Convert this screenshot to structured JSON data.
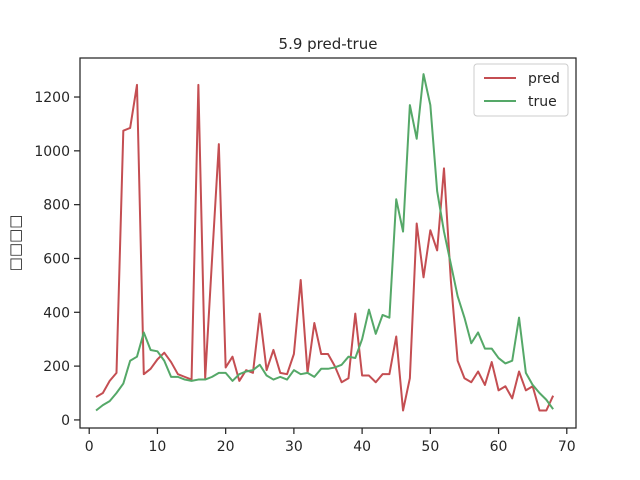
{
  "chart_data": {
    "type": "line",
    "title": "5.9 pred-true",
    "xlabel": "",
    "ylabel": "□□□□",
    "xlim": [
      -1.35,
      71.35
    ],
    "ylim": [
      -30,
      1345
    ],
    "xticks": [
      0,
      10,
      20,
      30,
      40,
      50,
      60,
      70
    ],
    "yticks": [
      0,
      200,
      400,
      600,
      800,
      1000,
      1200
    ],
    "grid": false,
    "legend_position": "top-right",
    "x": [
      1,
      2,
      3,
      4,
      5,
      6,
      7,
      8,
      9,
      10,
      11,
      12,
      13,
      14,
      15,
      16,
      17,
      18,
      19,
      20,
      21,
      22,
      23,
      24,
      25,
      26,
      27,
      28,
      29,
      30,
      31,
      32,
      33,
      34,
      35,
      36,
      37,
      38,
      39,
      40,
      41,
      42,
      43,
      44,
      45,
      46,
      47,
      48,
      49,
      50,
      51,
      52,
      53,
      54,
      55,
      56,
      57,
      58,
      59,
      60,
      61,
      62,
      63,
      64,
      65,
      66,
      67,
      68
    ],
    "series": [
      {
        "name": "pred",
        "color": "#c44e52",
        "values": [
          85,
          100,
          145,
          175,
          1075,
          1085,
          1245,
          170,
          190,
          225,
          250,
          215,
          170,
          160,
          150,
          1245,
          155,
          595,
          1025,
          195,
          235,
          145,
          185,
          175,
          395,
          185,
          260,
          175,
          170,
          245,
          520,
          175,
          360,
          245,
          245,
          200,
          140,
          155,
          395,
          165,
          165,
          140,
          170,
          170,
          310,
          35,
          155,
          730,
          530,
          705,
          630,
          935,
          520,
          220,
          155,
          140,
          180,
          130,
          215,
          110,
          125,
          80,
          180,
          110,
          125,
          35,
          35,
          90
        ]
      },
      {
        "name": "true",
        "color": "#55a868",
        "values": [
          35,
          55,
          70,
          100,
          135,
          220,
          235,
          325,
          260,
          255,
          220,
          160,
          160,
          150,
          145,
          150,
          150,
          160,
          175,
          175,
          145,
          170,
          180,
          185,
          205,
          165,
          150,
          160,
          150,
          185,
          170,
          175,
          160,
          190,
          190,
          195,
          205,
          235,
          230,
          300,
          410,
          320,
          390,
          380,
          820,
          700,
          1170,
          1045,
          1285,
          1170,
          850,
          700,
          580,
          460,
          380,
          285,
          325,
          265,
          265,
          230,
          210,
          220,
          380,
          175,
          130,
          100,
          75,
          40
        ]
      }
    ]
  }
}
